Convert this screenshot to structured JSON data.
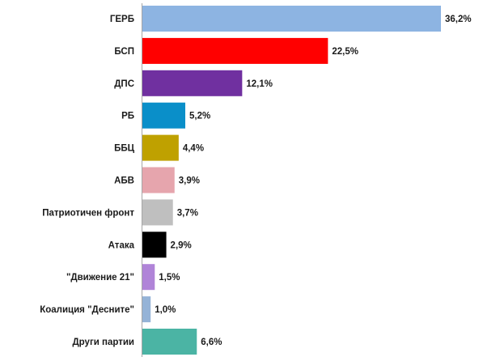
{
  "chart_data": {
    "type": "bar",
    "orientation": "horizontal",
    "categories": [
      "ГЕРБ",
      "БСП",
      "ДПС",
      "РБ",
      "ББЦ",
      "АБВ",
      "Патриотичен фронт",
      "Атака",
      "\"Движение 21\"",
      "Коалиция \"Десните\"",
      "Други партии"
    ],
    "values": [
      36.2,
      22.5,
      12.1,
      5.2,
      4.4,
      3.9,
      3.7,
      2.9,
      1.5,
      1.0,
      6.6
    ],
    "value_labels": [
      "36,2%",
      "22,5%",
      "12,1%",
      "5,2%",
      "4,4%",
      "3,9%",
      "3,7%",
      "2,9%",
      "1,5%",
      "1,0%",
      "6,6%"
    ],
    "colors": [
      "#8db4e2",
      "#ff0000",
      "#7030a0",
      "#0a8fc9",
      "#bfa100",
      "#e6a5ad",
      "#bfbfbf",
      "#000000",
      "#b084d8",
      "#95b3d7",
      "#4bb4a4"
    ],
    "xlim": [
      0,
      40
    ],
    "grid": false,
    "legend": "none",
    "title": "",
    "xlabel": "",
    "ylabel": ""
  }
}
